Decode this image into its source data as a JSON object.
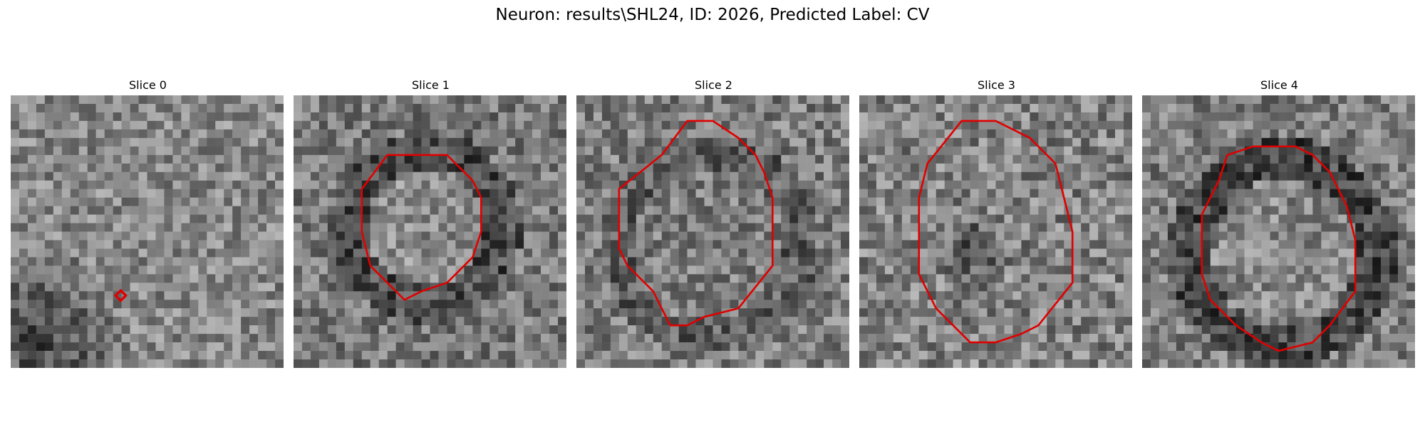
{
  "figure": {
    "title": "Neuron: results\\SHL24, ID: 2026, Predicted Label: CV"
  },
  "outline_color": "#e00000",
  "panels": [
    {
      "title": "Slice 0",
      "contour": "marker"
    },
    {
      "title": "Slice 1",
      "contour": "outline"
    },
    {
      "title": "Slice 2",
      "contour": "outline"
    },
    {
      "title": "Slice 3",
      "contour": "outline"
    },
    {
      "title": "Slice 4",
      "contour": "outline"
    }
  ]
}
